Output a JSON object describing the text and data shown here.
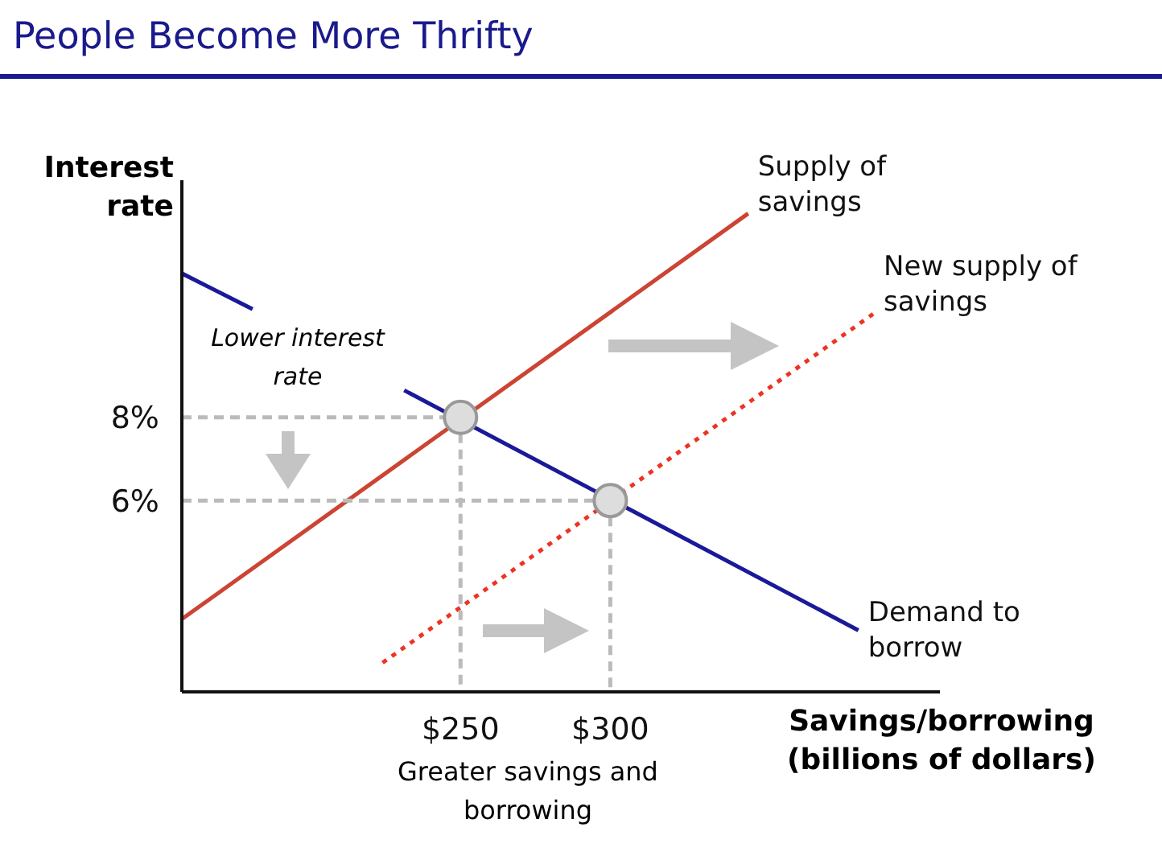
{
  "chart_data": {
    "type": "line",
    "title": "People Become More Thrifty",
    "xlabel": "Savings/borrowing (billions of dollars)",
    "ylabel": "Interest rate",
    "xlim": [
      157,
      410
    ],
    "ylim": [
      1.4,
      13.7
    ],
    "xticks": [
      {
        "value": 250,
        "label": "$250"
      },
      {
        "value": 300,
        "label": "$300"
      }
    ],
    "yticks": [
      {
        "value": 8,
        "label": "8%"
      },
      {
        "value": 6,
        "label": "6%"
      }
    ],
    "marker": "none",
    "series": [
      {
        "name": "Supply of savings",
        "color": "#cc4433",
        "x": [
          157,
          346
        ],
        "values": [
          3.15,
          12.9
        ]
      },
      {
        "name": "New supply of savings",
        "color": "#ee3322",
        "line_style": "dotted",
        "x": [
          224,
          388
        ],
        "values": [
          2.1,
          10.5
        ]
      },
      {
        "name": "Demand to borrow",
        "color": "#1a1a99",
        "x": [
          157,
          180.6,
          200,
          231.2,
          382.8
        ],
        "values": [
          11.46,
          10.6,
          null,
          8.65,
          2.88
        ]
      },
      {
        "color": "#bbbbbb",
        "line_style": "dashed",
        "x": [
          157,
          250
        ],
        "values": [
          8,
          8
        ]
      },
      {
        "color": "#bbbbbb",
        "line_style": "dashed",
        "x": [
          157,
          300
        ],
        "values": [
          6,
          6
        ]
      },
      {
        "color": "#bbbbbb",
        "line_style": "dashed",
        "x": [
          250,
          250
        ],
        "values": [
          8,
          1.4
        ]
      },
      {
        "color": "#bbbbbb",
        "line_style": "dashed",
        "x": [
          300,
          300
        ],
        "values": [
          6,
          1.4
        ]
      },
      {
        "type": "scatter",
        "marker": "circle",
        "color": "#dddddd",
        "x": [
          250,
          300
        ],
        "values": [
          8,
          6
        ]
      }
    ],
    "annotations": [
      "Lower interest rate",
      "Greater savings and borrowing"
    ]
  }
}
